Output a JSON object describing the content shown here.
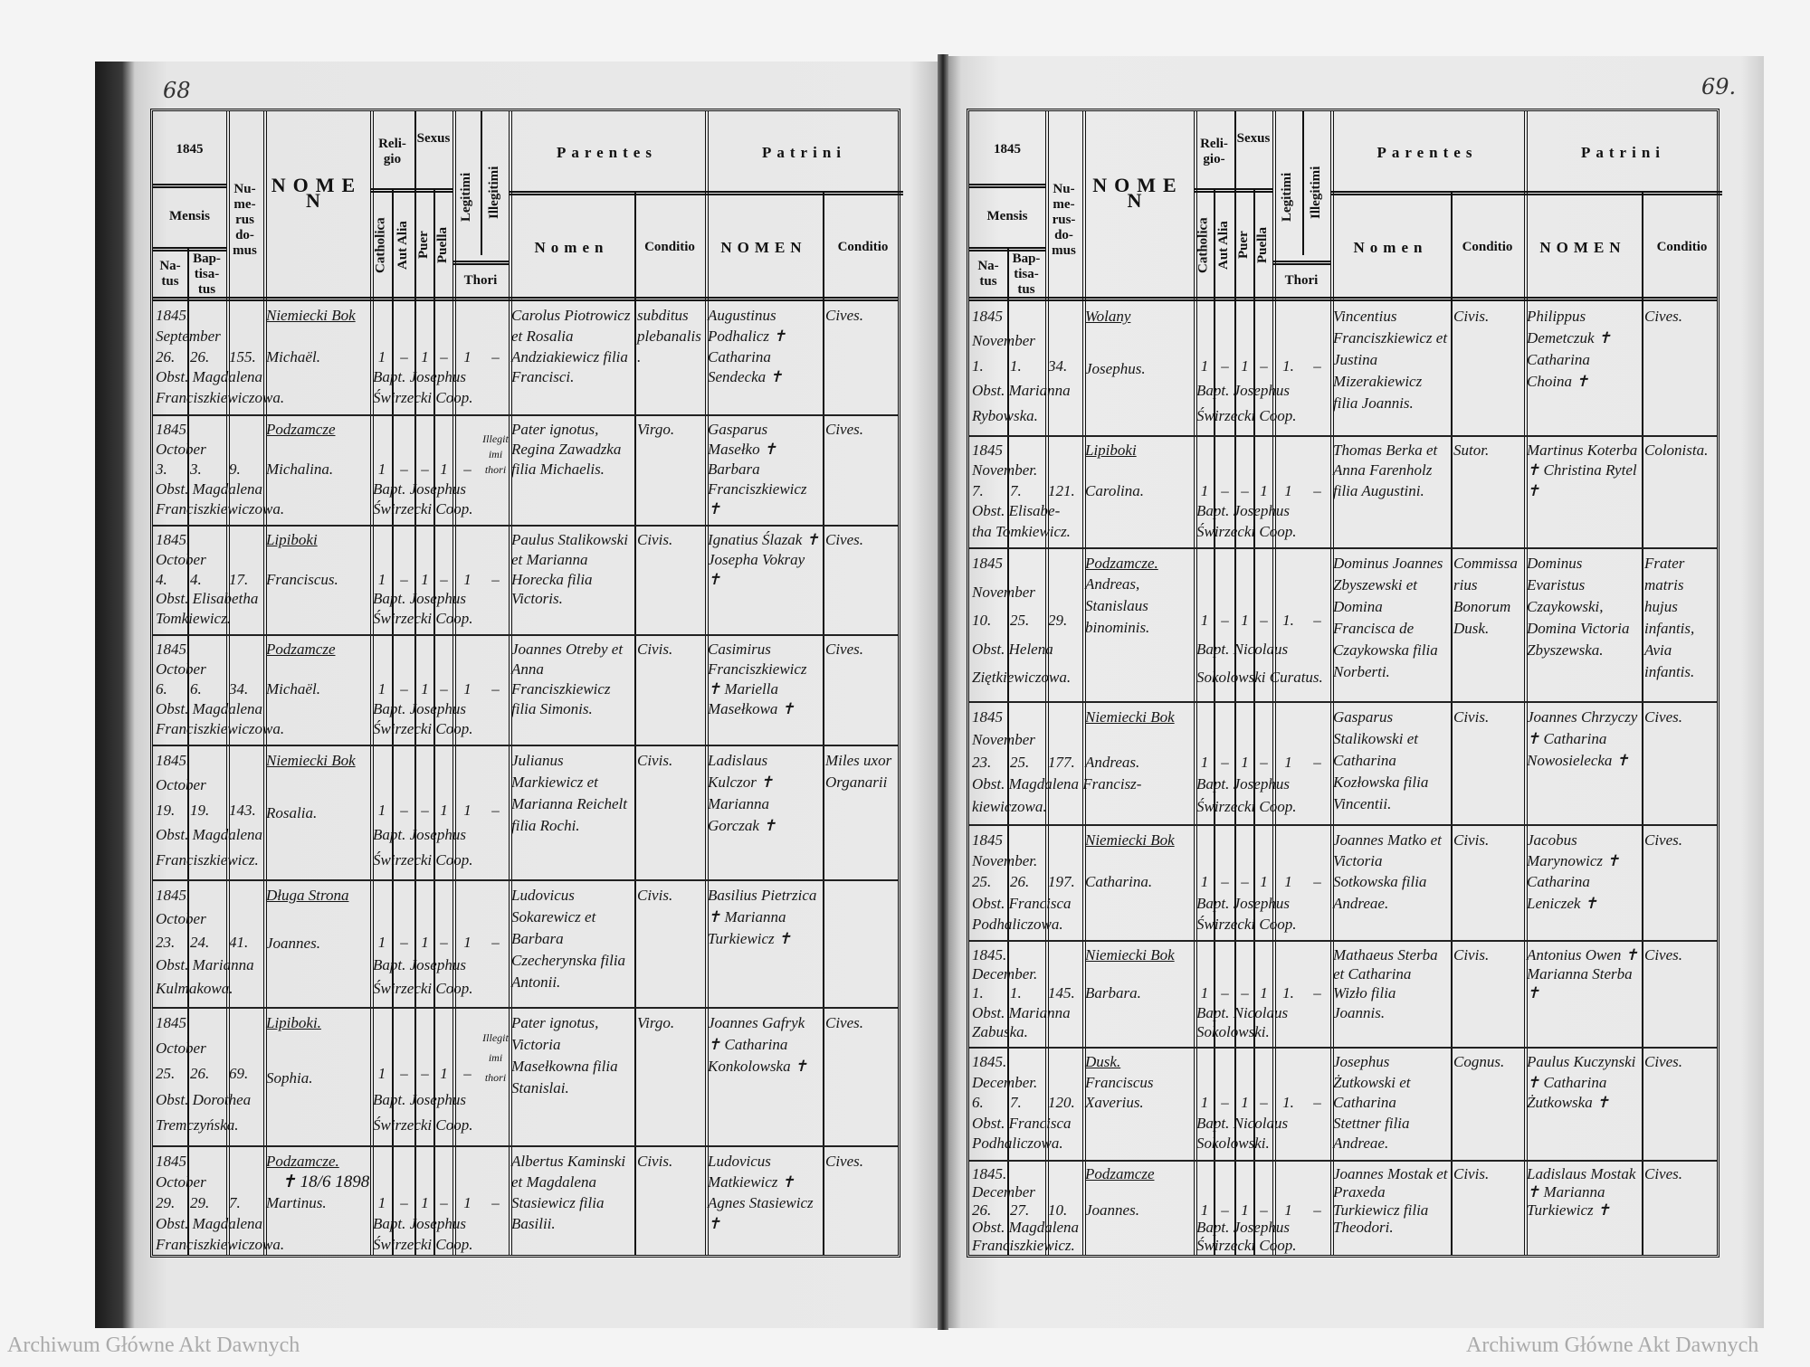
{
  "watermark": {
    "text": "Archiwum Główne Akt Dawnych"
  },
  "pages": [
    {
      "page_number": "68",
      "header": {
        "year": "1845",
        "mensis": "Mensis",
        "natus": "Na-tus",
        "baptisatus": "Bap-tisa-tus",
        "numerus_domus": "Nu-me-rus do-mus",
        "nomen": "NOMEN",
        "religio": "Reli-gio",
        "catholica": "Catholica",
        "aut_alia": "Aut Alia",
        "sexus": "Sexus",
        "puer": "Puer",
        "puella": "Puella",
        "legitimi": "Legitimi",
        "illegitimi": "Illegitimi",
        "thori": "Thori",
        "parentes": "Parentes",
        "parentes_nomen": "Nomen",
        "parentes_conditio": "Conditio",
        "patrini": "Patrini",
        "patrini_nomen": "NOMEN",
        "patrini_conditio": "Conditio"
      },
      "rows": [
        {
          "year": "1845.",
          "month": "September",
          "natus": "26.",
          "baptisatus": "26.",
          "domus": "155.",
          "village": "Niemiecki Bok",
          "name": "Michaël.",
          "obstetrix": [
            "Obst. Magdalena",
            "Franciszkiewiczowa."
          ],
          "marks": [
            "1",
            "–",
            "1",
            "–",
            "1",
            "–"
          ],
          "baptizans": [
            "Bapt. Josephus",
            "Świrzecki Coop."
          ],
          "parents": "Carolus Piotrowicz et Rosalia Andziakiewicz filia Francisci.",
          "parents_conditio": "subditus plebanalis.",
          "patrini": "Augustinus Podhalicz ✝ Catharina Sendecka ✝",
          "patrini_conditio": "Cives."
        },
        {
          "year": "1845.",
          "month": "October",
          "natus": "3.",
          "baptisatus": "3.",
          "domus": "9.",
          "village": "Podzamcze",
          "name": "Michalina.",
          "obstetrix": [
            "Obst. Magdalena",
            "Franciszkiewiczowa."
          ],
          "marks": [
            "1",
            "–",
            "–",
            "1",
            "–",
            "Illegitimi thori"
          ],
          "baptizans": [
            "Bapt. Josephus",
            "Świrzecki Coop."
          ],
          "parents": "Pater ignotus, Regina Zawadzka filia Michaelis.",
          "parents_conditio": "Virgo.",
          "patrini": "Gasparus Masełko ✝ Barbara Franciszkiewicz ✝",
          "patrini_conditio": "Cives."
        },
        {
          "year": "1845.",
          "month": "October",
          "natus": "4.",
          "baptisatus": "4.",
          "domus": "17.",
          "village": "Lipiboki",
          "name": "Franciscus.",
          "obstetrix": [
            "Obst. Elisabetha",
            "Tomkiewicz."
          ],
          "marks": [
            "1",
            "–",
            "1",
            "–",
            "1",
            "–"
          ],
          "baptizans": [
            "Bapt. Josephus",
            "Świrzecki Coop."
          ],
          "parents": "Paulus Stalikowski et Marianna Horecka filia Victoris.",
          "parents_conditio": "Civis.",
          "patrini": "Ignatius Ślazak ✝ Josepha Vokray ✝",
          "patrini_conditio": "Cives."
        },
        {
          "year": "1845.",
          "month": "October",
          "natus": "6.",
          "baptisatus": "6.",
          "domus": "34.",
          "village": "Podzamcze",
          "name": "Michaël.",
          "obstetrix": [
            "Obst. Magdalena",
            "Franciszkiewiczowa."
          ],
          "marks": [
            "1",
            "–",
            "1",
            "–",
            "1",
            "–"
          ],
          "baptizans": [
            "Bapt. Josephus",
            "Świrzecki Coop."
          ],
          "parents": "Joannes Otreby et Anna Franciszkiewicz filia Simonis.",
          "parents_conditio": "Civis.",
          "patrini": "Casimirus Franciszkiewicz ✝ Mariella Masełkowa ✝",
          "patrini_conditio": "Cives."
        },
        {
          "year": "1845.",
          "month": "October",
          "natus": "19.",
          "baptisatus": "19.",
          "domus": "143.",
          "village": "Niemiecki Bok",
          "name": "Rosalia.",
          "obstetrix": [
            "Obst. Magdalena",
            "Franciszkiewicz."
          ],
          "marks": [
            "1",
            "–",
            "–",
            "1",
            "1",
            "–"
          ],
          "baptizans": [
            "Bapt. Josephus",
            "Świrzecki Coop."
          ],
          "parents": "Julianus Markiewicz et Marianna Reichelt filia Rochi.",
          "parents_conditio": "Civis.",
          "patrini": "Ladislaus Kulczor ✝ Marianna Gorczak ✝",
          "patrini_conditio": "Miles uxor Organarii"
        },
        {
          "year": "1845.",
          "month": "October",
          "natus": "23.",
          "baptisatus": "24.",
          "domus": "41.",
          "village": "Długa Strona",
          "name": "Joannes.",
          "obstetrix": [
            "Obst. Marianna",
            "Kulmakowa."
          ],
          "marks": [
            "1",
            "–",
            "1",
            "–",
            "1",
            "–"
          ],
          "baptizans": [
            "Bapt. Josephus",
            "Świrzecki Coop."
          ],
          "parents": "Ludovicus Sokarewicz et Barbara Czecherynska filia Antonii.",
          "parents_conditio": "Civis.",
          "patrini": "Basilius Pietrzica ✝ Marianna Turkiewicz ✝",
          "patrini_conditio": ""
        },
        {
          "year": "1845",
          "month": "October",
          "natus": "25.",
          "baptisatus": "26.",
          "domus": "69.",
          "village": "Lipiboki.",
          "name": "Sophia.",
          "obstetrix": [
            "Obst. Dorothea",
            "Tremczyńska."
          ],
          "marks": [
            "1",
            "–",
            "–",
            "1",
            "–",
            "Illegitimi thori"
          ],
          "baptizans": [
            "Bapt. Josephus",
            "Świrzecki Coop."
          ],
          "parents": "Pater ignotus, Victoria Masełkowna filia Stanislai.",
          "parents_conditio": "Virgo.",
          "patrini": "Joannes Gafryk ✝ Catharina Konkolowska ✝",
          "patrini_conditio": "Cives."
        },
        {
          "year": "1845",
          "month": "October",
          "natus": "29.",
          "baptisatus": "29.",
          "domus": "7.",
          "village": "Podzamcze.",
          "name": "Martinus.",
          "obstetrix": [
            "Obst. Magdalena",
            "Franciszkiewiczowa."
          ],
          "marks": [
            "1",
            "–",
            "1",
            "–",
            "1",
            "–"
          ],
          "baptizans": [
            "Bapt. Josephus",
            "Świrzecki Coop."
          ],
          "parents": "Albertus Kaminski et Magdalena Stasiewicz filia Basilii.",
          "parents_conditio": "Civis.",
          "patrini": "Ludovicus Matkiewicz ✝ Agnes Stasiewicz ✝",
          "patrini_conditio": "Cives.",
          "note": "✝ 18/6 1898"
        }
      ]
    },
    {
      "page_number": "69.",
      "header": {
        "year": "1845",
        "mensis": "Mensis",
        "natus": "Na-tus",
        "baptisatus": "Bap-tisa-tus",
        "numerus_domus": "Nu-me-rus-do-mus",
        "nomen": "NOMEN",
        "religio": "Reli-gio-",
        "catholica": "Catholica",
        "aut_alia": "Aut Alia",
        "sexus": "Sexus",
        "puer": "Puer",
        "puella": "Puella",
        "legitimi": "Legitimi",
        "illegitimi": "Illegitimi",
        "thori": "Thori",
        "parentes": "Parentes",
        "parentes_nomen": "Nomen",
        "parentes_conditio": "Conditio",
        "patrini": "Patrini",
        "patrini_nomen": "NOMEN",
        "patrini_conditio": "Conditio"
      },
      "rows": [
        {
          "year": "1845",
          "month": "November",
          "natus": "1.",
          "baptisatus": "1.",
          "domus": "34.",
          "village": "Wolany",
          "name": "Josephus.",
          "obstetrix": [
            "Obst. Marianna",
            "Rybowska."
          ],
          "marks": [
            "1",
            "–",
            "1",
            "–",
            "1.",
            "–"
          ],
          "baptizans": [
            "Bapt. Josephus",
            "Świrzecki Coop."
          ],
          "parents": "Vincentius Franciszkiewicz et Justina Mizerakiewicz filia Joannis.",
          "parents_conditio": "Civis.",
          "patrini": "Philippus Demetczuk ✝ Catharina Choina ✝",
          "patrini_conditio": "Cives."
        },
        {
          "year": "1845",
          "month": "November.",
          "natus": "7.",
          "baptisatus": "7.",
          "domus": "121.",
          "village": "Lipiboki",
          "name": "Carolina.",
          "obstetrix": [
            "Obst. Elisabe-",
            "tha Tomkiewicz."
          ],
          "marks": [
            "1",
            "–",
            "–",
            "1",
            "1",
            "–"
          ],
          "baptizans": [
            "Bapt. Josephus",
            "Świrzecki Coop."
          ],
          "parents": "Thomas Berka et Anna Farenholz filia Augustini.",
          "parents_conditio": "Sutor.",
          "patrini": "Martinus Koterba ✝ Christina Rytel ✝",
          "patrini_conditio": "Colonista."
        },
        {
          "year": "1845",
          "month": "November",
          "natus": "10.",
          "baptisatus": "25.",
          "domus": "29.",
          "village": "Podzamcze.",
          "name": "Andreas, Stanislaus binominis.",
          "obstetrix": [
            "Obst. Helena",
            "Ziętkiewiczowa."
          ],
          "marks": [
            "1",
            "–",
            "1",
            "–",
            "1.",
            "–"
          ],
          "baptizans": [
            "Bapt. Nicolaus",
            "Sokolowski Curatus."
          ],
          "parents": "Dominus Joannes Zbyszewski et Domina Francisca de Czaykowska filia Norberti.",
          "parents_conditio": "Commissarius Bonorum Dusk.",
          "patrini": "Dominus Evaristus Czaykowski, Domina Victoria Zbyszewska.",
          "patrini_conditio": "Frater matris hujus infantis, Avia infantis."
        },
        {
          "year": "1845",
          "month": "November",
          "natus": "23.",
          "baptisatus": "25.",
          "domus": "177.",
          "village": "Niemiecki Bok",
          "name": "Andreas.",
          "obstetrix": [
            "Obst. Magdalena Francisz-",
            "kiewiczowa."
          ],
          "marks": [
            "1",
            "–",
            "1",
            "–",
            "1",
            "–"
          ],
          "baptizans": [
            "Bapt. Josephus",
            "Świrzecki Coop."
          ],
          "parents": "Gasparus Stalikowski et Catharina Kozłowska filia Vincentii.",
          "parents_conditio": "Civis.",
          "patrini": "Joannes Chrzyczy ✝ Catharina Nowosielecka ✝",
          "patrini_conditio": "Cives."
        },
        {
          "year": "1845",
          "month": "November.",
          "natus": "25.",
          "baptisatus": "26.",
          "domus": "197.",
          "village": "Niemiecki Bok",
          "name": "Catharina.",
          "obstetrix": [
            "Obst. Francisca",
            "Podhaliczowa."
          ],
          "marks": [
            "1",
            "–",
            "–",
            "1",
            "1",
            "–"
          ],
          "baptizans": [
            "Bapt. Josephus",
            "Świrzecki Coop."
          ],
          "parents": "Joannes Matko et Victoria Sotkowska filia Andreae.",
          "parents_conditio": "Civis.",
          "patrini": "Jacobus Marynowicz ✝ Catharina Leniczek ✝",
          "patrini_conditio": "Cives."
        },
        {
          "year": "1845.",
          "month": "December.",
          "natus": "1.",
          "baptisatus": "1.",
          "domus": "145.",
          "village": "Niemiecki Bok",
          "name": "Barbara.",
          "obstetrix": [
            "Obst. Marianna",
            "Zabuska."
          ],
          "marks": [
            "1",
            "–",
            "–",
            "1",
            "1.",
            "–"
          ],
          "baptizans": [
            "Bapt. Nicolaus",
            "Sokolowski."
          ],
          "parents": "Mathaeus Sterba et Catharina Wizło filia Joannis.",
          "parents_conditio": "Civis.",
          "patrini": "Antonius Owen ✝ Marianna Sterba ✝",
          "patrini_conditio": "Cives."
        },
        {
          "year": "1845.",
          "month": "December.",
          "natus": "6.",
          "baptisatus": "7.",
          "domus": "120.",
          "village": "Dusk.",
          "name": "Franciscus Xaverius.",
          "obstetrix": [
            "Obst. Francisca",
            "Podhaliczowa."
          ],
          "marks": [
            "1",
            "–",
            "1",
            "–",
            "1.",
            "–"
          ],
          "baptizans": [
            "Bapt. Nicolaus",
            "Sokolowski."
          ],
          "parents": "Josephus Żutkowski et Catharina Stettner filia Andreae.",
          "parents_conditio": "Cognus.",
          "patrini": "Paulus Kuczynski ✝ Catharina Żutkowska ✝",
          "patrini_conditio": "Cives."
        },
        {
          "year": "1845.",
          "month": "December",
          "natus": "26.",
          "baptisatus": "27.",
          "domus": "10.",
          "village": "Podzamcze",
          "name": "Joannes.",
          "obstetrix": [
            "Obst. Magdalena",
            "Franciszkiewicz."
          ],
          "marks": [
            "1",
            "–",
            "1",
            "–",
            "1",
            "–"
          ],
          "baptizans": [
            "Bapt. Josephus",
            "Świrzecki Coop."
          ],
          "parents": "Joannes Mostak et Praxeda Turkiewicz filia Theodori.",
          "parents_conditio": "Civis.",
          "patrini": "Ladislaus Mostak ✝ Marianna Turkiewicz ✝",
          "patrini_conditio": "Cives."
        }
      ]
    }
  ]
}
